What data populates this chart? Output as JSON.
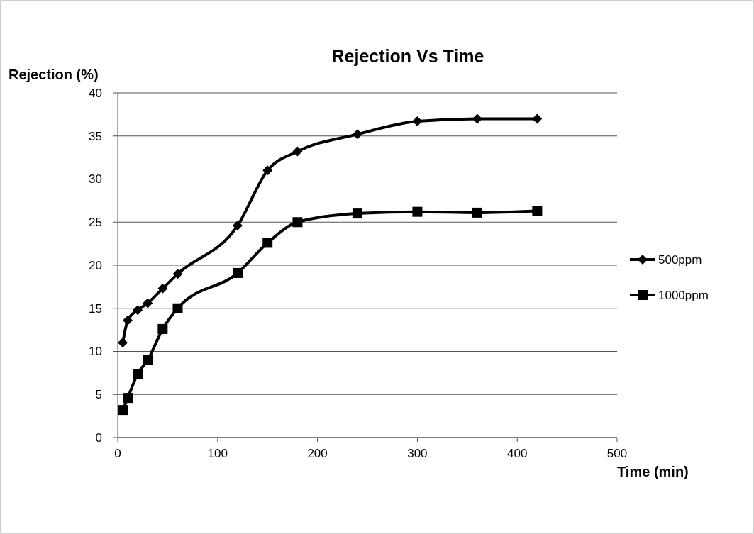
{
  "chart_data": {
    "type": "line",
    "title": "Rejection Vs Time",
    "xlabel": "Time (min)",
    "ylabel": "Rejection (%)",
    "x": [
      5,
      10,
      20,
      30,
      45,
      60,
      120,
      150,
      180,
      240,
      300,
      360,
      420
    ],
    "series": [
      {
        "name": "500ppm",
        "color": "#000000",
        "marker": "diamond",
        "values": [
          11,
          13.6,
          14.8,
          15.6,
          17.3,
          19,
          24.6,
          31,
          33.2,
          35.2,
          36.7,
          37,
          37
        ]
      },
      {
        "name": "1000ppm",
        "color": "#000000",
        "marker": "square",
        "values": [
          3.2,
          4.6,
          7.4,
          9,
          12.6,
          15,
          19.1,
          22.6,
          25,
          26,
          26.2,
          26.1,
          26.3
        ]
      }
    ],
    "xlim": [
      0,
      500
    ],
    "xticks": [
      0,
      100,
      200,
      300,
      400,
      500
    ],
    "ylim": [
      0,
      40
    ],
    "yticks": [
      0,
      5,
      10,
      15,
      20,
      25,
      30,
      35,
      40
    ],
    "grid": "y",
    "legend": "right",
    "line_style": "solid"
  }
}
